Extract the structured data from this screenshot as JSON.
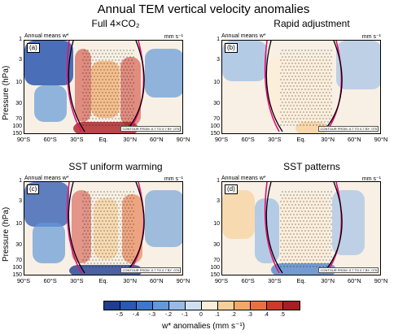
{
  "figure_title": "Annual TEM vertical velocity anomalies",
  "panel_label_left": "Annual means w*",
  "units": "mm s⁻¹",
  "contour_note": "CONTOUR FROM -0.7 TO 0.7 BY .075",
  "ylabel": "Pressure (hPa)",
  "colorbar_label": "w* anomalies (mm s⁻¹)",
  "colors": {
    "positive": "#d8262b",
    "negative": "#2d6fbf",
    "magenta_contour": "#e0107a",
    "black_contour": "#000000",
    "stipple": "#000000"
  },
  "chart_data": [
    {
      "type": "heatmap",
      "panel": "a",
      "title": "Full 4×CO₂",
      "xlabel": "",
      "ylabel": "Pressure (hPa)",
      "x_ticks": [
        "90°S",
        "60°S",
        "30°S",
        "Eq.",
        "30°N",
        "60°N",
        "90°N"
      ],
      "y_ticks": [
        "1",
        "3",
        "10",
        "30",
        "70",
        "100",
        "150"
      ],
      "y_scale": "log",
      "ylim": [
        150,
        1
      ],
      "xlim": [
        -90,
        90
      ],
      "colorbar_levels": [
        -0.5,
        -0.4,
        -0.3,
        -0.2,
        -0.1,
        0,
        0.1,
        0.2,
        0.3,
        0.4,
        0.5
      ],
      "annotations": [
        "(a)"
      ]
    },
    {
      "type": "heatmap",
      "panel": "b",
      "title": "Rapid adjustment",
      "xlabel": "",
      "ylabel": "",
      "x_ticks": [
        "90°S",
        "60°S",
        "30°S",
        "Eq.",
        "30°N",
        "60°N",
        "90°N"
      ],
      "y_ticks": [
        "1",
        "3",
        "10",
        "30",
        "70",
        "100",
        "150"
      ],
      "y_scale": "log",
      "ylim": [
        150,
        1
      ],
      "xlim": [
        -90,
        90
      ],
      "annotations": [
        "(b)"
      ]
    },
    {
      "type": "heatmap",
      "panel": "c",
      "title": "SST uniform warming",
      "xlabel": "",
      "ylabel": "Pressure (hPa)",
      "x_ticks": [
        "90°S",
        "60°S",
        "30°S",
        "Eq.",
        "30°N",
        "60°N",
        "90°N"
      ],
      "y_ticks": [
        "1",
        "3",
        "10",
        "30",
        "70",
        "100",
        "150"
      ],
      "y_scale": "log",
      "ylim": [
        150,
        1
      ],
      "xlim": [
        -90,
        90
      ],
      "annotations": [
        "(c)"
      ]
    },
    {
      "type": "heatmap",
      "panel": "d",
      "title": "SST patterns",
      "xlabel": "",
      "ylabel": "",
      "x_ticks": [
        "90°S",
        "60°S",
        "30°S",
        "Eq.",
        "30°N",
        "60°N",
        "90°N"
      ],
      "y_ticks": [
        "1",
        "3",
        "10",
        "30",
        "70",
        "100",
        "150"
      ],
      "y_scale": "log",
      "ylim": [
        150,
        1
      ],
      "xlim": [
        -90,
        90
      ],
      "annotations": [
        "(d)"
      ]
    }
  ],
  "colorbar": {
    "ticks": [
      "-.5",
      "-.4",
      "-.3",
      "-.2",
      "-.1",
      "0",
      ".1",
      ".2",
      ".3",
      ".4",
      ".5"
    ],
    "colors": [
      "#1f3d8f",
      "#2b58b0",
      "#3d78cb",
      "#6499d9",
      "#97bbe6",
      "#cfe0f2",
      "#fbeed8",
      "#f6d09a",
      "#f2a868",
      "#e6733f",
      "#cc3a2c",
      "#a71e22"
    ]
  }
}
